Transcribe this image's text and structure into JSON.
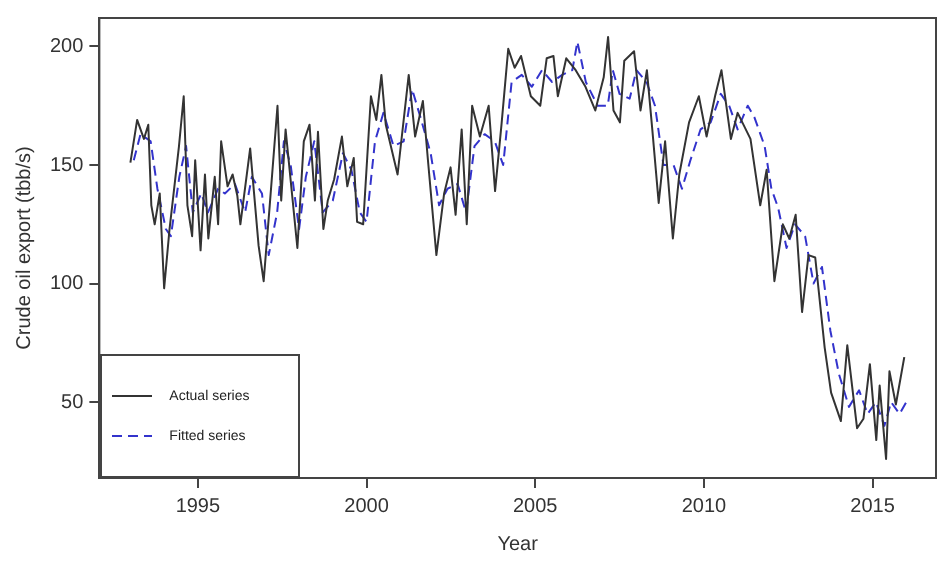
{
  "chart_data": {
    "type": "line",
    "xlabel": "Year",
    "ylabel": "Crude oil export (tbb/s)",
    "xlim": [
      1992.08,
      2016.88
    ],
    "ylim": [
      18,
      212
    ],
    "xticks": [
      1995,
      2000,
      2005,
      2010,
      2015
    ],
    "yticks": [
      50,
      100,
      150,
      200
    ],
    "legend": "bottom left",
    "marker": "none",
    "series": [
      {
        "name": "Actual series",
        "color": "#333333",
        "line_style": "solid",
        "x": [
          1993.0,
          1993.2,
          1993.4,
          1993.53,
          1993.62,
          1993.72,
          1993.87,
          1994.0,
          1994.16,
          1994.44,
          1994.58,
          1994.69,
          1994.83,
          1994.92,
          1995.08,
          1995.21,
          1995.31,
          1995.5,
          1995.6,
          1995.69,
          1995.88,
          1996.03,
          1996.17,
          1996.26,
          1996.55,
          1996.8,
          1996.95,
          1997.13,
          1997.36,
          1997.47,
          1997.6,
          1997.95,
          1998.14,
          1998.31,
          1998.47,
          1998.56,
          1998.72,
          1998.85,
          1999.04,
          1999.27,
          1999.43,
          1999.62,
          1999.72,
          1999.9,
          2000.13,
          2000.29,
          2000.44,
          2000.57,
          2000.92,
          2001.25,
          2001.44,
          2001.67,
          2001.82,
          2002.07,
          2002.3,
          2002.49,
          2002.64,
          2002.82,
          2002.97,
          2003.13,
          2003.36,
          2003.62,
          2003.81,
          2004.0,
          2004.2,
          2004.39,
          2004.58,
          2004.87,
          2005.15,
          2005.34,
          2005.54,
          2005.67,
          2005.92,
          2006.2,
          2006.49,
          2006.78,
          2007.03,
          2007.16,
          2007.32,
          2007.51,
          2007.64,
          2007.93,
          2008.12,
          2008.31,
          2008.47,
          2008.66,
          2008.85,
          2009.08,
          2009.27,
          2009.56,
          2009.85,
          2010.08,
          2010.33,
          2010.52,
          2010.8,
          2011.0,
          2011.38,
          2011.67,
          2011.86,
          2012.09,
          2012.34,
          2012.53,
          2012.72,
          2012.91,
          2013.1,
          2013.3,
          2013.58,
          2013.77,
          2014.06,
          2014.25,
          2014.54,
          2014.73,
          2014.92,
          2015.11,
          2015.21,
          2015.4,
          2015.5,
          2015.69,
          2015.94
        ],
        "values": [
          151,
          169,
          161,
          167,
          133,
          125,
          138,
          98,
          123,
          158,
          179,
          133,
          120,
          152,
          114,
          146,
          119,
          145,
          125,
          160,
          141,
          146,
          137,
          125,
          157,
          116,
          101,
          133,
          175,
          135,
          165,
          115,
          160,
          167,
          135,
          164,
          123,
          135,
          144,
          162,
          141,
          153,
          126,
          125,
          179,
          169,
          188,
          167,
          146,
          188,
          162,
          177,
          152,
          112,
          138,
          149,
          129,
          165,
          125,
          175,
          162,
          175,
          139,
          167,
          199,
          191,
          196,
          179,
          175,
          195,
          196,
          179,
          195,
          190,
          183,
          173,
          187,
          204,
          173,
          168,
          194,
          198,
          173,
          190,
          165,
          134,
          160,
          119,
          146,
          168,
          179,
          162,
          179,
          190,
          161,
          172,
          161,
          133,
          148,
          101,
          125,
          119,
          129,
          88,
          112,
          111,
          73,
          54,
          42,
          74,
          39,
          43,
          66,
          34,
          57,
          26,
          63,
          49,
          69
        ]
      },
      {
        "name": "Fitted series",
        "color": "#3333cc",
        "line_style": "dashed",
        "x": [
          1993.1,
          1993.3,
          1993.6,
          1993.8,
          1994.05,
          1994.2,
          1994.45,
          1994.65,
          1994.85,
          1995.1,
          1995.3,
          1995.6,
          1995.8,
          1996.1,
          1996.4,
          1996.6,
          1996.9,
          1997.1,
          1997.35,
          1997.55,
          1997.75,
          1998.0,
          1998.2,
          1998.45,
          1998.7,
          1999.0,
          1999.3,
          1999.55,
          1999.8,
          2000.0,
          2000.25,
          2000.5,
          2000.8,
          2001.1,
          2001.35,
          2001.6,
          2001.9,
          2002.15,
          2002.4,
          2002.7,
          2002.95,
          2003.2,
          2003.5,
          2003.8,
          2004.05,
          2004.3,
          2004.6,
          2004.9,
          2005.2,
          2005.5,
          2005.8,
          2006.1,
          2006.25,
          2006.5,
          2006.85,
          2007.15,
          2007.3,
          2007.5,
          2007.8,
          2008.0,
          2008.3,
          2008.55,
          2008.8,
          2009.1,
          2009.35,
          2009.6,
          2009.9,
          2010.2,
          2010.5,
          2010.75,
          2011.0,
          2011.3,
          2011.5,
          2011.8,
          2012.0,
          2012.2,
          2012.45,
          2012.7,
          2013.0,
          2013.25,
          2013.5,
          2013.75,
          2014.0,
          2014.3,
          2014.6,
          2014.85,
          2015.1,
          2015.35,
          2015.55,
          2015.8,
          2016.0
        ],
        "values": [
          152,
          163,
          160,
          140,
          123,
          120,
          145,
          158,
          130,
          138,
          130,
          140,
          138,
          142,
          130,
          145,
          138,
          112,
          130,
          160,
          150,
          123,
          145,
          160,
          130,
          135,
          155,
          148,
          130,
          126,
          160,
          172,
          158,
          160,
          182,
          170,
          155,
          133,
          140,
          142,
          130,
          158,
          163,
          160,
          150,
          185,
          188,
          183,
          190,
          185,
          188,
          190,
          202,
          185,
          175,
          175,
          190,
          180,
          178,
          190,
          185,
          175,
          150,
          150,
          140,
          152,
          165,
          168,
          180,
          175,
          165,
          175,
          170,
          158,
          140,
          132,
          115,
          125,
          120,
          100,
          107,
          80,
          62,
          48,
          55,
          45,
          50,
          40,
          50,
          45,
          50
        ]
      }
    ]
  }
}
